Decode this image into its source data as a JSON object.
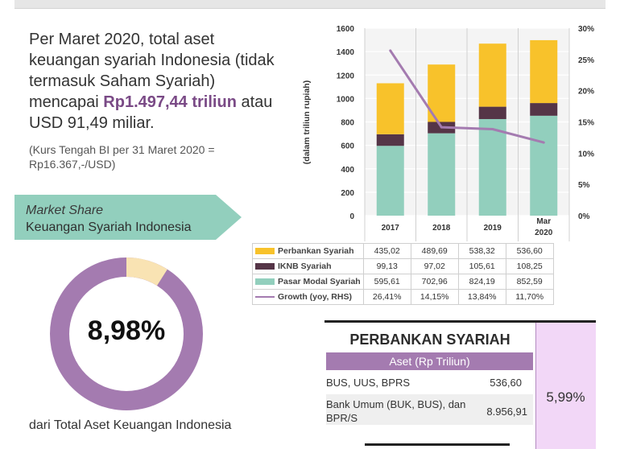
{
  "intro": {
    "text1": "Per Maret 2020, total aset keuangan syariah Indonesia (tidak termasuk Saham Syariah) mencapai ",
    "highlight1": "Rp1.497,44",
    "highlight2": "triliun",
    "text2": " atau USD 91,49 miliar.",
    "kurs": "(Kurs Tengah BI per 31 Maret 2020 = Rp16.367,-/USD)"
  },
  "market_share": {
    "title": "Market Share",
    "subtitle": "Keuangan Syariah Indonesia",
    "percent_label": "8,98%",
    "value": 8.98,
    "caption": "dari Total Aset Keuangan Indonesia"
  },
  "colors": {
    "perbankan": "#f8c22b",
    "iknb": "#553547",
    "pasar_modal": "#92cfbd",
    "growth": "#a47bb0",
    "banner": "#92cfbd",
    "donut_main": "#a47bb0",
    "donut_share": "#f9e3b3",
    "ps_header": "#a47bb0",
    "ps_pink": "#f2d7f7"
  },
  "chart_data": {
    "type": "bar",
    "stacked": true,
    "categories": [
      "2017",
      "2018",
      "2019",
      "Mar\n2020"
    ],
    "category_lines": [
      [
        "2017"
      ],
      [
        "2018"
      ],
      [
        "2019"
      ],
      [
        "Mar",
        "2020"
      ]
    ],
    "series": [
      {
        "name": "Pasar Modal Syariah",
        "values": [
          595.61,
          702.96,
          824.19,
          852.59
        ],
        "labels": [
          "595,61",
          "702,96",
          "824,19",
          "852,59"
        ]
      },
      {
        "name": "IKNB Syariah",
        "values": [
          99.13,
          97.02,
          105.61,
          108.25
        ],
        "labels": [
          "99,13",
          "97,02",
          "105,61",
          "108,25"
        ]
      },
      {
        "name": "Perbankan Syariah",
        "values": [
          435.02,
          489.69,
          538.32,
          536.6
        ],
        "labels": [
          "435,02",
          "489,69",
          "538,32",
          "536,60"
        ]
      }
    ],
    "line_series": {
      "name": "Growth (yoy, RHS)",
      "values": [
        26.41,
        14.15,
        13.84,
        11.7
      ],
      "labels": [
        "26,41%",
        "14,15%",
        "13,84%",
        "11,70%"
      ]
    },
    "ylabel": "(dalam triliun rupiah)",
    "ylim": [
      0,
      1600
    ],
    "yticks": [
      "0",
      "200",
      "400",
      "600",
      "800",
      "1000",
      "1200",
      "1400",
      "1600"
    ],
    "y2lim": [
      0,
      30
    ],
    "y2ticks": [
      "0%",
      "5%",
      "10%",
      "15%",
      "20%",
      "25%",
      "30%"
    ],
    "grid": true,
    "legend": "table-below"
  },
  "table": {
    "rows": [
      {
        "name": "Perbankan Syariah",
        "key": "perbankan",
        "kind": "bar",
        "values": [
          "435,02",
          "489,69",
          "538,32",
          "536,60"
        ]
      },
      {
        "name": "IKNB Syariah",
        "key": "iknb",
        "kind": "bar",
        "values": [
          "99,13",
          "97,02",
          "105,61",
          "108,25"
        ]
      },
      {
        "name": "Pasar Modal Syariah",
        "key": "pasar_modal",
        "kind": "bar",
        "values": [
          "595,61",
          "702,96",
          "824,19",
          "852,59"
        ]
      },
      {
        "name": "Growth (yoy, RHS)",
        "key": "growth",
        "kind": "line",
        "values": [
          "26,41%",
          "14,15%",
          "13,84%",
          "11,70%"
        ]
      }
    ]
  },
  "perbankan_panel": {
    "title": "PERBANKAN SYARIAH",
    "subheader": "Aset (Rp Triliun)",
    "row1_label": "BUS, UUS, BPRS",
    "row1_value": "536,60",
    "row2_label": "Bank Umum (BUK, BUS), dan BPR/S",
    "row2_value": "8.956,91",
    "share": "5,99%"
  }
}
